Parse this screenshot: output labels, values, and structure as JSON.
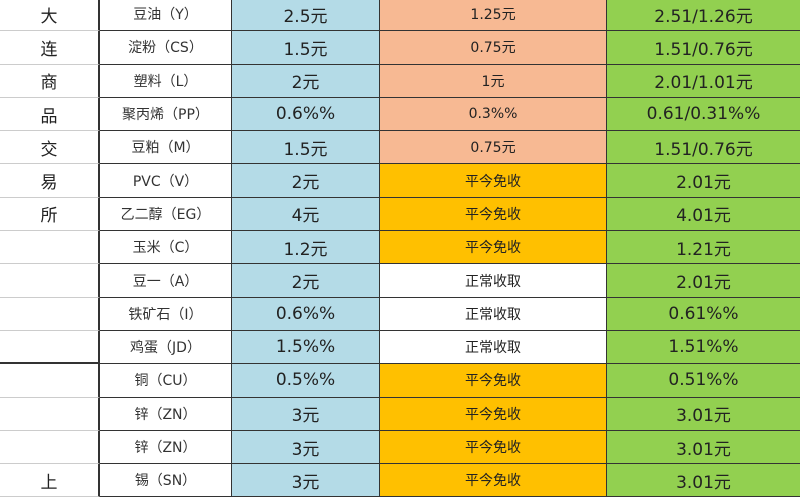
{
  "colors": {
    "standard_fee": "#b4dbe7",
    "reduced": "#f7b993",
    "close_today_free": "#ffc000",
    "normal": "#ffffff",
    "total": "#92d050"
  },
  "rows": [
    {
      "exchange": "大",
      "product": "豆油（Y）",
      "fee": "2.5元",
      "close_today": "1.25元",
      "close_today_type": "reduced",
      "total": "2.51/1.26元"
    },
    {
      "exchange": "连",
      "product": "淀粉（CS）",
      "fee": "1.5元",
      "close_today": "0.75元",
      "close_today_type": "reduced",
      "total": "1.51/0.76元"
    },
    {
      "exchange": "商",
      "product": "塑料（L）",
      "fee": "2元",
      "close_today": "1元",
      "close_today_type": "reduced",
      "total": "2.01/1.01元"
    },
    {
      "exchange": "品",
      "product": "聚丙烯（PP）",
      "fee": "0.6%%",
      "close_today": "0.3%%",
      "close_today_type": "reduced",
      "total": "0.61/0.31%%"
    },
    {
      "exchange": "交",
      "product": "豆粕（M）",
      "fee": "1.5元",
      "close_today": "0.75元",
      "close_today_type": "reduced",
      "total": "1.51/0.76元"
    },
    {
      "exchange": "易",
      "product": "PVC（V）",
      "fee": "2元",
      "close_today": "平今免收",
      "close_today_type": "close_today_free",
      "total": "2.01元"
    },
    {
      "exchange": "所",
      "product": "乙二醇（EG）",
      "fee": "4元",
      "close_today": "平今免收",
      "close_today_type": "close_today_free",
      "total": "4.01元"
    },
    {
      "exchange": "",
      "product": "玉米（C）",
      "fee": "1.2元",
      "close_today": "平今免收",
      "close_today_type": "close_today_free",
      "total": "1.21元"
    },
    {
      "exchange": "",
      "product": "豆一（A）",
      "fee": "2元",
      "close_today": "正常收取",
      "close_today_type": "normal",
      "total": "2.01元"
    },
    {
      "exchange": "",
      "product": "铁矿石（I）",
      "fee": "0.6%%",
      "close_today": "正常收取",
      "close_today_type": "normal",
      "total": "0.61%%"
    },
    {
      "exchange": "",
      "product": "鸡蛋（JD）",
      "fee": "1.5%%",
      "close_today": "正常收取",
      "close_today_type": "normal",
      "total": "1.51%%"
    },
    {
      "exchange": "",
      "product": "铜（CU）",
      "fee": "0.5%%",
      "close_today": "平今免收",
      "close_today_type": "close_today_free",
      "total": "0.51%%"
    },
    {
      "exchange": "",
      "product": "锌（ZN）",
      "fee": "3元",
      "close_today": "平今免收",
      "close_today_type": "close_today_free",
      "total": "3.01元"
    },
    {
      "exchange": "",
      "product": "锌（ZN）",
      "fee": "3元",
      "close_today": "平今免收",
      "close_today_type": "close_today_free",
      "total": "3.01元"
    },
    {
      "exchange": "上",
      "product": "锡（SN）",
      "fee": "3元",
      "close_today": "平今免收",
      "close_today_type": "close_today_free",
      "total": "3.01元"
    }
  ]
}
